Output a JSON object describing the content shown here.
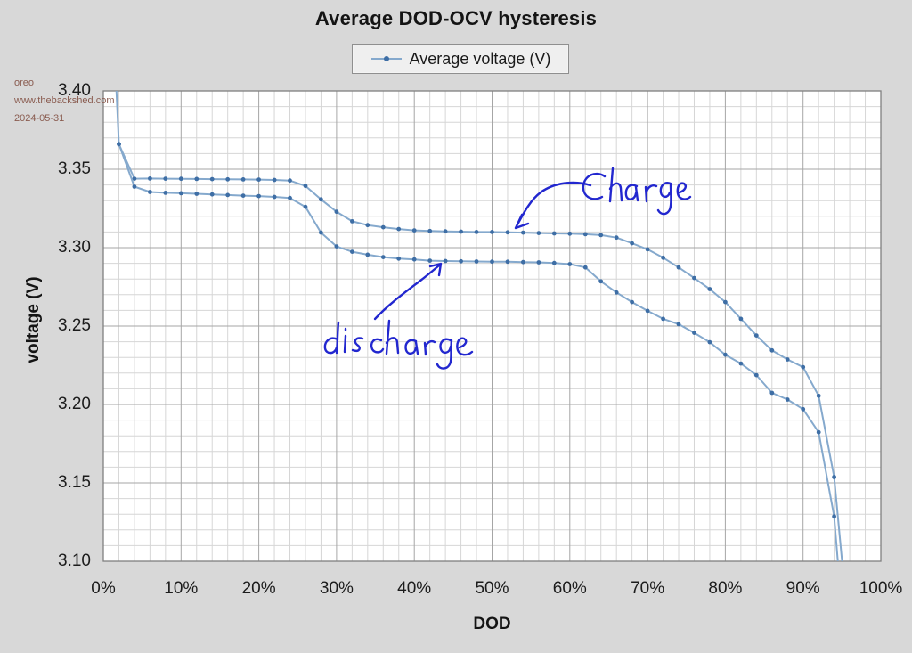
{
  "title": "Average DOD-OCV hysteresis",
  "legend": {
    "label": "Average voltage (V)"
  },
  "watermark": {
    "line1": "oreo",
    "line2": "www.thebackshed.com",
    "line3": "2024-05-31",
    "color": "#8a5c50"
  },
  "axes": {
    "x_title": "DOD",
    "y_title": "voltage (V)",
    "x_ticks": [
      "0%",
      "10%",
      "20%",
      "30%",
      "40%",
      "50%",
      "60%",
      "70%",
      "80%",
      "90%",
      "100%"
    ],
    "y_ticks": [
      "3.40",
      "3.35",
      "3.30",
      "3.25",
      "3.20",
      "3.15",
      "3.10"
    ]
  },
  "annotations": [
    {
      "text": "Charge",
      "target": "upper branch near 53% DOD, ~3.310 V",
      "ink_color": "#2227cf"
    },
    {
      "text": "discharge",
      "target": "lower branch near 43% DOD, ~3.292 V",
      "ink_color": "#2227cf"
    }
  ],
  "chart_data": {
    "type": "line",
    "title": "Average DOD-OCV hysteresis",
    "xlabel": "DOD",
    "ylabel": "voltage (V)",
    "series_name": "Average voltage (V)",
    "xlim_pct": [
      0,
      100
    ],
    "ylim": [
      3.1,
      3.4
    ],
    "x_major_step_pct": 10,
    "x_minor_step_pct": 2,
    "y_major_step": 0.05,
    "y_minor_step": 0.01,
    "grid": true,
    "legend_position": "top-center",
    "colors": {
      "line": "#85a9cd",
      "marker": "#3e6ea5",
      "major_grid": "#a6a6a6",
      "minor_grid": "#d6d6d6",
      "plot_border": "#7f7f7f",
      "plot_bg": "#ffffff"
    },
    "note": "Single hysteresis-loop series; upper branch = charge, lower branch = discharge. Curve enters from above 3.40 V near 1.5% DOD and both tails fall below 3.10 V near 94-95% DOD (clipped).",
    "series": [
      {
        "name": "charge (upper branch)",
        "entry_offscale": [
          1.5,
          3.42
        ],
        "exit_offscale": [
          95.4,
          3.08
        ],
        "points": [
          [
            2,
            3.366
          ],
          [
            4,
            3.344
          ],
          [
            6,
            3.3441
          ],
          [
            8,
            3.344
          ],
          [
            10,
            3.3439
          ],
          [
            12,
            3.3438
          ],
          [
            14,
            3.3437
          ],
          [
            16,
            3.3436
          ],
          [
            18,
            3.3435
          ],
          [
            20,
            3.3434
          ],
          [
            22,
            3.3432
          ],
          [
            24,
            3.3428
          ],
          [
            26,
            3.3394
          ],
          [
            28,
            3.3308
          ],
          [
            30,
            3.3229
          ],
          [
            32,
            3.3168
          ],
          [
            34,
            3.3144
          ],
          [
            36,
            3.313
          ],
          [
            38,
            3.3119
          ],
          [
            40,
            3.311
          ],
          [
            42,
            3.3106
          ],
          [
            44,
            3.3104
          ],
          [
            46,
            3.3102
          ],
          [
            48,
            3.31
          ],
          [
            50,
            3.31
          ],
          [
            52,
            3.3098
          ],
          [
            54,
            3.3096
          ],
          [
            56,
            3.3093
          ],
          [
            58,
            3.3091
          ],
          [
            60,
            3.3089
          ],
          [
            62,
            3.3086
          ],
          [
            64,
            3.308
          ],
          [
            66,
            3.3064
          ],
          [
            68,
            3.3028
          ],
          [
            70,
            3.2989
          ],
          [
            72,
            3.2936
          ],
          [
            74,
            3.2874
          ],
          [
            76,
            3.2806
          ],
          [
            78,
            3.2736
          ],
          [
            80,
            3.2653
          ],
          [
            82,
            3.2546
          ],
          [
            84,
            3.244
          ],
          [
            86,
            3.2345
          ],
          [
            88,
            3.2287
          ],
          [
            90,
            3.2238
          ],
          [
            92,
            3.2055
          ],
          [
            94,
            3.1537
          ]
        ]
      },
      {
        "name": "discharge (lower branch)",
        "exit_offscale": [
          94.8,
          3.08
        ],
        "points": [
          [
            2,
            3.366
          ],
          [
            4,
            3.3389
          ],
          [
            6,
            3.3355
          ],
          [
            8,
            3.335
          ],
          [
            10,
            3.3347
          ],
          [
            12,
            3.3344
          ],
          [
            14,
            3.334
          ],
          [
            16,
            3.3336
          ],
          [
            18,
            3.3332
          ],
          [
            20,
            3.3329
          ],
          [
            22,
            3.3324
          ],
          [
            24,
            3.3317
          ],
          [
            26,
            3.326
          ],
          [
            28,
            3.3096
          ],
          [
            30,
            3.3008
          ],
          [
            32,
            3.2974
          ],
          [
            34,
            3.2955
          ],
          [
            36,
            3.294
          ],
          [
            38,
            3.293
          ],
          [
            40,
            3.2925
          ],
          [
            42,
            3.2917
          ],
          [
            44,
            3.2915
          ],
          [
            46,
            3.2913
          ],
          [
            48,
            3.2912
          ],
          [
            50,
            3.2911
          ],
          [
            52,
            3.291
          ],
          [
            54,
            3.2908
          ],
          [
            56,
            3.2906
          ],
          [
            58,
            3.2902
          ],
          [
            60,
            3.2895
          ],
          [
            62,
            3.2874
          ],
          [
            64,
            3.2785
          ],
          [
            66,
            3.2714
          ],
          [
            68,
            3.2653
          ],
          [
            70,
            3.2597
          ],
          [
            72,
            3.2546
          ],
          [
            74,
            3.2512
          ],
          [
            76,
            3.2457
          ],
          [
            78,
            3.2397
          ],
          [
            80,
            3.2317
          ],
          [
            82,
            3.2261
          ],
          [
            84,
            3.2187
          ],
          [
            86,
            3.2074
          ],
          [
            88,
            3.2031
          ],
          [
            90,
            3.197
          ],
          [
            92,
            3.1823
          ],
          [
            94,
            3.1286
          ]
        ]
      }
    ]
  }
}
